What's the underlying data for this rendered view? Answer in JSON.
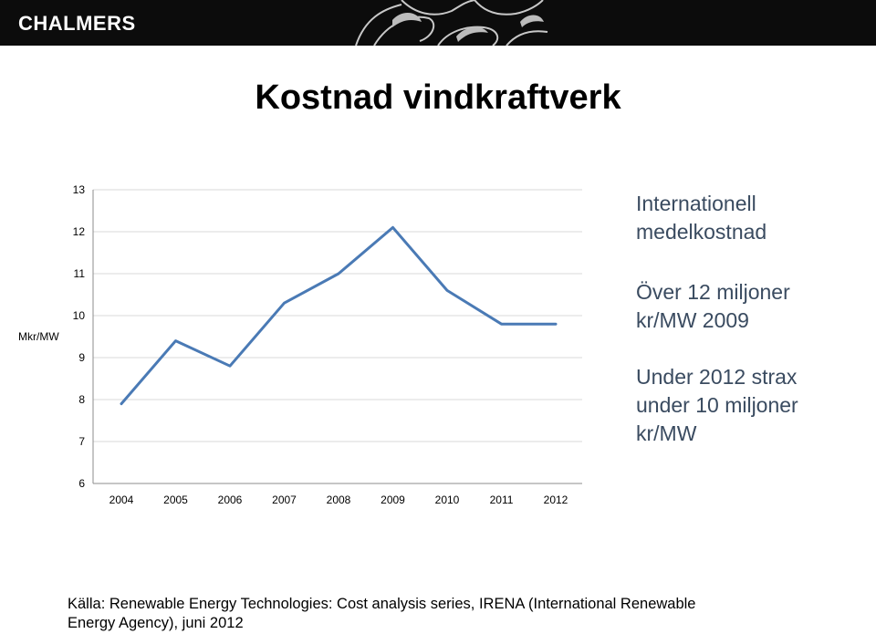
{
  "header": {
    "logo_text": "CHALMERS",
    "bar_color": "#0c0c0c",
    "ornament_icon": "swirl-ornament"
  },
  "title": "Kostnad vindkraftverk",
  "chart_data": {
    "type": "line",
    "categories": [
      "2004",
      "2005",
      "2006",
      "2007",
      "2008",
      "2009",
      "2010",
      "2011",
      "2012"
    ],
    "series": [
      {
        "values": [
          7.9,
          9.4,
          8.8,
          10.3,
          11.0,
          12.1,
          10.6,
          9.8,
          9.8
        ],
        "color": "#4a7ab5"
      }
    ],
    "ylabel": "Mkr/MW",
    "ylim": [
      6,
      13
    ],
    "yticks": [
      "6",
      "7",
      "8",
      "9",
      "10",
      "11",
      "12",
      "13"
    ],
    "grid": true,
    "legend": "none"
  },
  "side_notes": {
    "block1_line1": "Internationell",
    "block1_line2": "medelkostnad",
    "block2_line1": "Över 12 miljoner",
    "block2_line2": "kr/MW 2009",
    "block3_line1": "Under 2012 strax",
    "block3_line2": "under 10 miljoner",
    "block3_line3": "kr/MW"
  },
  "source": {
    "line1": "Källa: Renewable Energy Technologies: Cost analysis series, IRENA (International Renewable",
    "line2": "Energy Agency), juni 2012"
  }
}
